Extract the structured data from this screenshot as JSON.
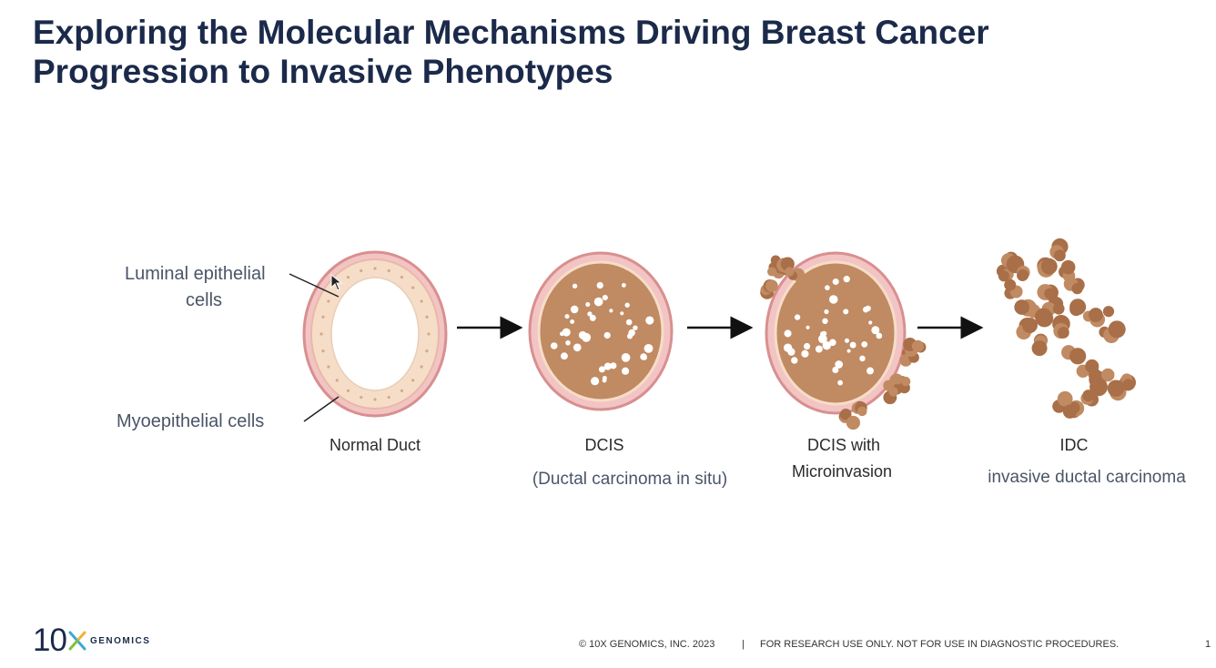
{
  "slide": {
    "title_line1": "Exploring the Molecular Mechanisms Driving Breast Cancer",
    "title_line2": "Progression to Invasive Phenotypes",
    "page_number": "1"
  },
  "diagram": {
    "labels": {
      "luminal_line1": "Luminal epithelial",
      "luminal_line2": "cells",
      "myoepithelial": "Myoepithelial cells"
    },
    "stages": [
      {
        "name": "Normal Duct",
        "subtitle": ""
      },
      {
        "name": "DCIS",
        "subtitle": "(Ductal carcinoma in situ)"
      },
      {
        "name_line1": "DCIS with",
        "name_line2": "Microinvasion"
      },
      {
        "name": "IDC",
        "subtitle": "invasive ductal carcinoma"
      }
    ],
    "colors": {
      "tumor": "#c08a62",
      "tumor_dark": "#a86f48",
      "stroma": "#e8a3a3",
      "epithelium": "#f6ddc8",
      "lumen": "#ffffff"
    }
  },
  "footer": {
    "logo_number": "10",
    "logo_word": "GENOMICS",
    "copyright": "© 10X GENOMICS, INC. 2023",
    "separator": "|",
    "disclaimer": "FOR RESEARCH USE ONLY. NOT FOR USE IN DIAGNOSTIC PROCEDURES."
  }
}
